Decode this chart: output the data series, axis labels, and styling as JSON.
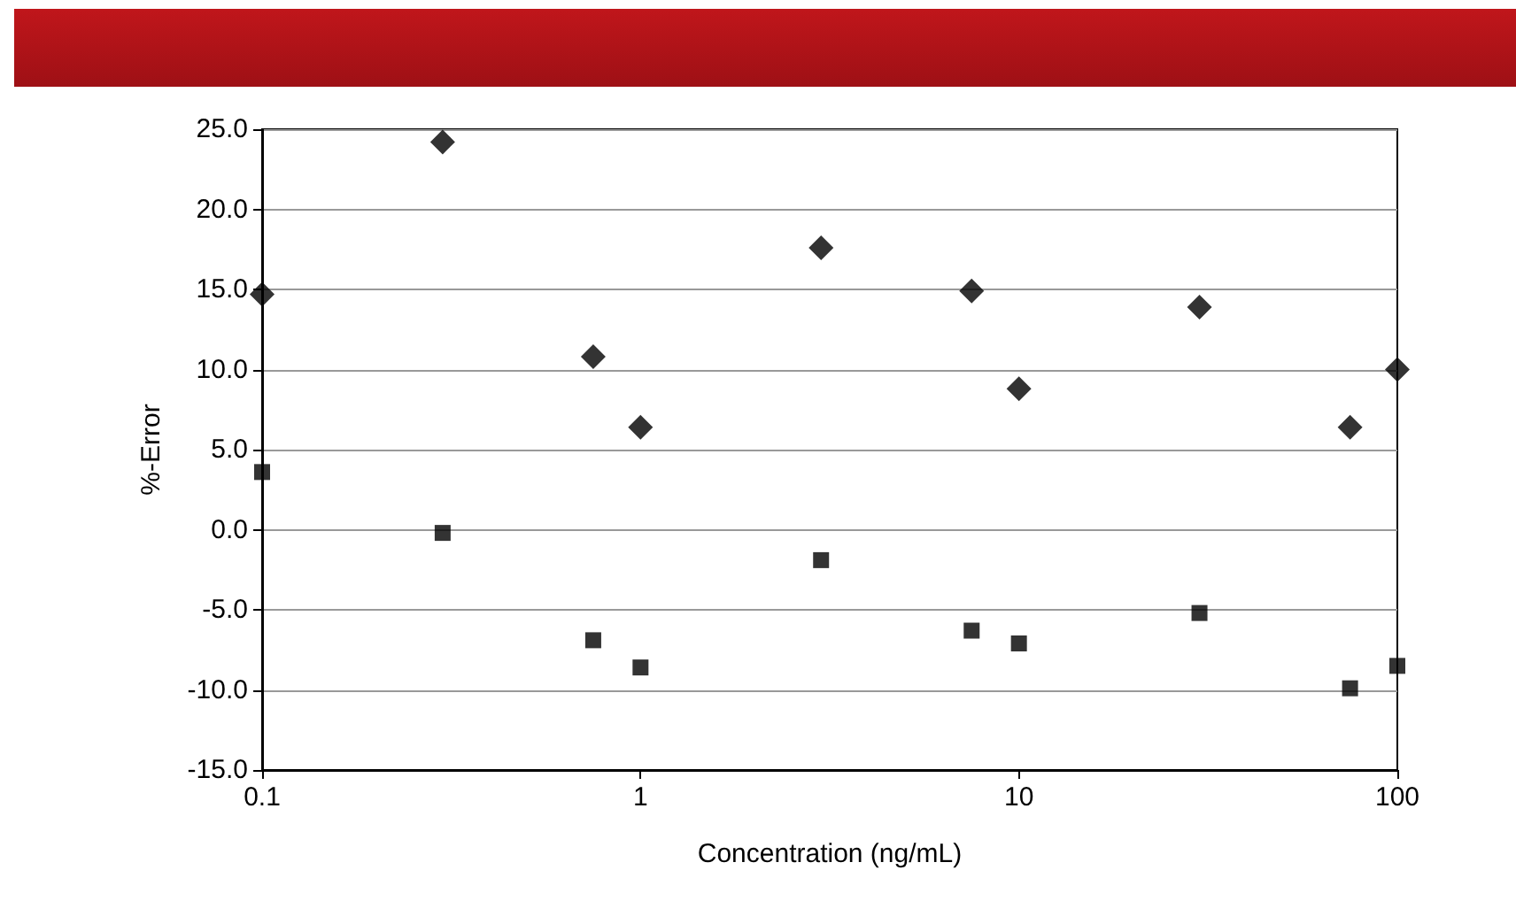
{
  "chart_data": {
    "type": "scatter",
    "xlabel": "Concentration (ng/mL)",
    "ylabel": "%-Error",
    "log": "x",
    "grid": "y",
    "xlim": [
      0.1,
      100
    ],
    "xticks": [
      0.1,
      1,
      10,
      100
    ],
    "ylim": [
      -15,
      25
    ],
    "yticks": [
      {
        "value": -15,
        "label": "-15.0"
      },
      {
        "value": -10,
        "label": "-10.0"
      },
      {
        "value": -5,
        "label": "-5.0"
      },
      {
        "value": 0,
        "label": "0.0"
      },
      {
        "value": 5,
        "label": "5.0"
      },
      {
        "value": 10,
        "label": "10.0"
      },
      {
        "value": 15,
        "label": "15.0"
      },
      {
        "value": 20,
        "label": "20.0"
      },
      {
        "value": 25,
        "label": "25.0"
      }
    ],
    "series": [
      {
        "color": "#000000",
        "marker": "diamond",
        "x": [
          0.1,
          0.3,
          0.75,
          1,
          3,
          7.5,
          10,
          30,
          75,
          100
        ],
        "values": [
          14.7,
          24.2,
          10.8,
          6.4,
          17.6,
          14.9,
          8.8,
          13.9,
          6.4,
          10.0
        ]
      },
      {
        "color": "#000000",
        "marker": "square",
        "x": [
          0.1,
          0.3,
          0.75,
          1,
          3,
          7.5,
          10,
          30,
          75,
          100
        ],
        "values": [
          3.6,
          -0.2,
          -6.9,
          -8.6,
          -1.9,
          -6.3,
          -7.1,
          -5.2,
          -9.9,
          -8.5
        ]
      }
    ]
  }
}
